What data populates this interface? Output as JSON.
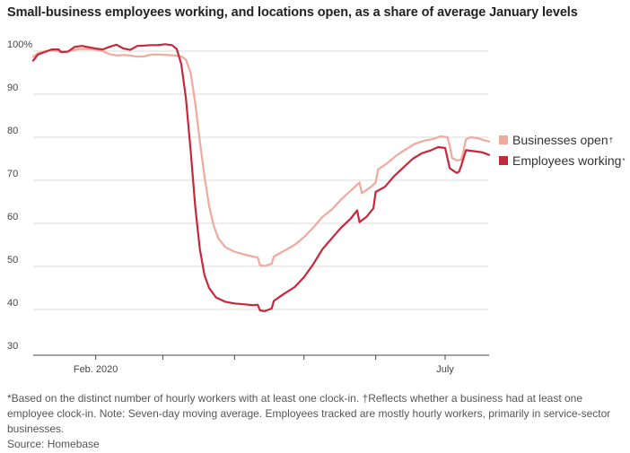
{
  "chart_data": {
    "type": "line",
    "title": "Small-business employees working, and locations open, as a share of average January levels",
    "ylim": [
      30,
      103
    ],
    "yticks": [
      {
        "value": 100,
        "label": "100%"
      },
      {
        "value": 90,
        "label": "90"
      },
      {
        "value": 80,
        "label": "80"
      },
      {
        "value": 70,
        "label": "70"
      },
      {
        "value": 60,
        "label": "60"
      },
      {
        "value": 50,
        "label": "50"
      },
      {
        "value": 40,
        "label": "40"
      },
      {
        "value": 30,
        "label": "30"
      }
    ],
    "xlim": [
      "2020-01-05",
      "2020-07-20"
    ],
    "month_ticks": [
      "2020-02-01",
      "2020-03-01",
      "2020-04-01",
      "2020-05-01",
      "2020-06-01",
      "2020-07-01"
    ],
    "xlabels": [
      {
        "date": "2020-02-01",
        "label": "Feb. 2020"
      },
      {
        "date": "2020-07-01",
        "label": "July"
      }
    ],
    "series": [
      {
        "name": "Businesses open",
        "marker": "†",
        "color": "#f0a99a",
        "points": [
          [
            "2020-01-05",
            98.7
          ],
          [
            "2020-01-07",
            99.5
          ],
          [
            "2020-01-10",
            100.0
          ],
          [
            "2020-01-13",
            100.2
          ],
          [
            "2020-01-16",
            100.0
          ],
          [
            "2020-01-19",
            99.8
          ],
          [
            "2020-01-22",
            100.2
          ],
          [
            "2020-01-25",
            100.5
          ],
          [
            "2020-01-28",
            100.5
          ],
          [
            "2020-02-01",
            100.4
          ],
          [
            "2020-02-04",
            100.0
          ],
          [
            "2020-02-07",
            99.3
          ],
          [
            "2020-02-10",
            99.0
          ],
          [
            "2020-02-13",
            99.1
          ],
          [
            "2020-02-16",
            99.0
          ],
          [
            "2020-02-19",
            98.7
          ],
          [
            "2020-02-22",
            98.8
          ],
          [
            "2020-02-25",
            99.2
          ],
          [
            "2020-02-28",
            99.2
          ],
          [
            "2020-03-03",
            99.1
          ],
          [
            "2020-03-06",
            99.0
          ],
          [
            "2020-03-09",
            98.8
          ],
          [
            "2020-03-11",
            98.0
          ],
          [
            "2020-03-13",
            95.0
          ],
          [
            "2020-03-15",
            88.0
          ],
          [
            "2020-03-17",
            79.0
          ],
          [
            "2020-03-19",
            71.0
          ],
          [
            "2020-03-21",
            64.0
          ],
          [
            "2020-03-23",
            59.5
          ],
          [
            "2020-03-25",
            56.5
          ],
          [
            "2020-03-28",
            54.5
          ],
          [
            "2020-04-01",
            53.4
          ],
          [
            "2020-04-05",
            52.8
          ],
          [
            "2020-04-09",
            52.3
          ],
          [
            "2020-04-11",
            52.1
          ],
          [
            "2020-04-12",
            50.3
          ],
          [
            "2020-04-14",
            50.1
          ],
          [
            "2020-04-17",
            50.6
          ],
          [
            "2020-04-18",
            52.3
          ],
          [
            "2020-04-22",
            53.5
          ],
          [
            "2020-04-27",
            55.0
          ],
          [
            "2020-05-01",
            56.8
          ],
          [
            "2020-05-05",
            59.0
          ],
          [
            "2020-05-09",
            61.5
          ],
          [
            "2020-05-13",
            63.2
          ],
          [
            "2020-05-17",
            65.5
          ],
          [
            "2020-05-21",
            67.5
          ],
          [
            "2020-05-25",
            69.5
          ],
          [
            "2020-05-26",
            67.0
          ],
          [
            "2020-05-30",
            68.5
          ],
          [
            "2020-06-01",
            69.5
          ],
          [
            "2020-06-02",
            72.5
          ],
          [
            "2020-06-06",
            74.0
          ],
          [
            "2020-06-10",
            75.8
          ],
          [
            "2020-06-14",
            77.2
          ],
          [
            "2020-06-18",
            78.5
          ],
          [
            "2020-06-22",
            79.2
          ],
          [
            "2020-06-26",
            79.6
          ],
          [
            "2020-06-29",
            80.2
          ],
          [
            "2020-07-02",
            80.0
          ],
          [
            "2020-07-03",
            78.0
          ],
          [
            "2020-07-04",
            75.2
          ],
          [
            "2020-07-06",
            74.6
          ],
          [
            "2020-07-08",
            74.8
          ],
          [
            "2020-07-09",
            77.0
          ],
          [
            "2020-07-10",
            79.5
          ],
          [
            "2020-07-12",
            80.0
          ],
          [
            "2020-07-15",
            79.8
          ],
          [
            "2020-07-18",
            79.3
          ],
          [
            "2020-07-20",
            79.0
          ]
        ]
      },
      {
        "name": "Employees working",
        "marker": "*",
        "color": "#c8263a",
        "points": [
          [
            "2020-01-05",
            97.8
          ],
          [
            "2020-01-07",
            99.2
          ],
          [
            "2020-01-10",
            99.8
          ],
          [
            "2020-01-13",
            100.4
          ],
          [
            "2020-01-16",
            100.4
          ],
          [
            "2020-01-17",
            99.8
          ],
          [
            "2020-01-20",
            99.9
          ],
          [
            "2020-01-23",
            101.0
          ],
          [
            "2020-01-26",
            101.2
          ],
          [
            "2020-01-28",
            101.0
          ],
          [
            "2020-02-01",
            100.6
          ],
          [
            "2020-02-04",
            100.4
          ],
          [
            "2020-02-07",
            101.0
          ],
          [
            "2020-02-10",
            101.5
          ],
          [
            "2020-02-13",
            100.6
          ],
          [
            "2020-02-16",
            100.3
          ],
          [
            "2020-02-19",
            101.2
          ],
          [
            "2020-02-22",
            101.3
          ],
          [
            "2020-02-25",
            101.4
          ],
          [
            "2020-02-28",
            101.4
          ],
          [
            "2020-03-02",
            101.6
          ],
          [
            "2020-03-05",
            101.4
          ],
          [
            "2020-03-07",
            100.5
          ],
          [
            "2020-03-09",
            97.0
          ],
          [
            "2020-03-11",
            89.0
          ],
          [
            "2020-03-13",
            77.0
          ],
          [
            "2020-03-15",
            64.0
          ],
          [
            "2020-03-17",
            54.0
          ],
          [
            "2020-03-19",
            48.0
          ],
          [
            "2020-03-21",
            45.0
          ],
          [
            "2020-03-24",
            42.8
          ],
          [
            "2020-03-28",
            41.8
          ],
          [
            "2020-04-01",
            41.4
          ],
          [
            "2020-04-05",
            41.2
          ],
          [
            "2020-04-09",
            41.0
          ],
          [
            "2020-04-11",
            41.1
          ],
          [
            "2020-04-12",
            39.8
          ],
          [
            "2020-04-14",
            39.6
          ],
          [
            "2020-04-17",
            40.2
          ],
          [
            "2020-04-18",
            42.0
          ],
          [
            "2020-04-22",
            43.5
          ],
          [
            "2020-04-27",
            45.2
          ],
          [
            "2020-05-01",
            47.5
          ],
          [
            "2020-05-05",
            50.5
          ],
          [
            "2020-05-09",
            54.0
          ],
          [
            "2020-05-13",
            56.5
          ],
          [
            "2020-05-17",
            59.0
          ],
          [
            "2020-05-21",
            61.0
          ],
          [
            "2020-05-24",
            63.0
          ],
          [
            "2020-05-25",
            60.3
          ],
          [
            "2020-05-28",
            61.5
          ],
          [
            "2020-05-31",
            63.5
          ],
          [
            "2020-06-01",
            67.3
          ],
          [
            "2020-06-05",
            68.5
          ],
          [
            "2020-06-09",
            71.0
          ],
          [
            "2020-06-13",
            73.0
          ],
          [
            "2020-06-17",
            75.0
          ],
          [
            "2020-06-21",
            76.3
          ],
          [
            "2020-06-25",
            77.0
          ],
          [
            "2020-06-28",
            77.7
          ],
          [
            "2020-07-01",
            77.5
          ],
          [
            "2020-07-03",
            72.8
          ],
          [
            "2020-07-06",
            71.7
          ],
          [
            "2020-07-07",
            72.0
          ],
          [
            "2020-07-08",
            73.5
          ],
          [
            "2020-07-10",
            77.0
          ],
          [
            "2020-07-13",
            76.8
          ],
          [
            "2020-07-17",
            76.5
          ],
          [
            "2020-07-20",
            75.9
          ]
        ]
      }
    ]
  },
  "legend": {
    "items": [
      {
        "label": "Businesses open",
        "marker": "†",
        "color": "#f0a99a"
      },
      {
        "label": "Employees working",
        "marker": "*",
        "color": "#c8263a"
      }
    ]
  },
  "footnote": "*Based on the distinct number of hourly workers with at least one clock-in. †Reflects whether a business had at least one employee clock-in. Note: Seven-day moving average. Employees tracked are mostly hourly workers, primarily in service-sector businesses.",
  "source": "Source: Homebase"
}
